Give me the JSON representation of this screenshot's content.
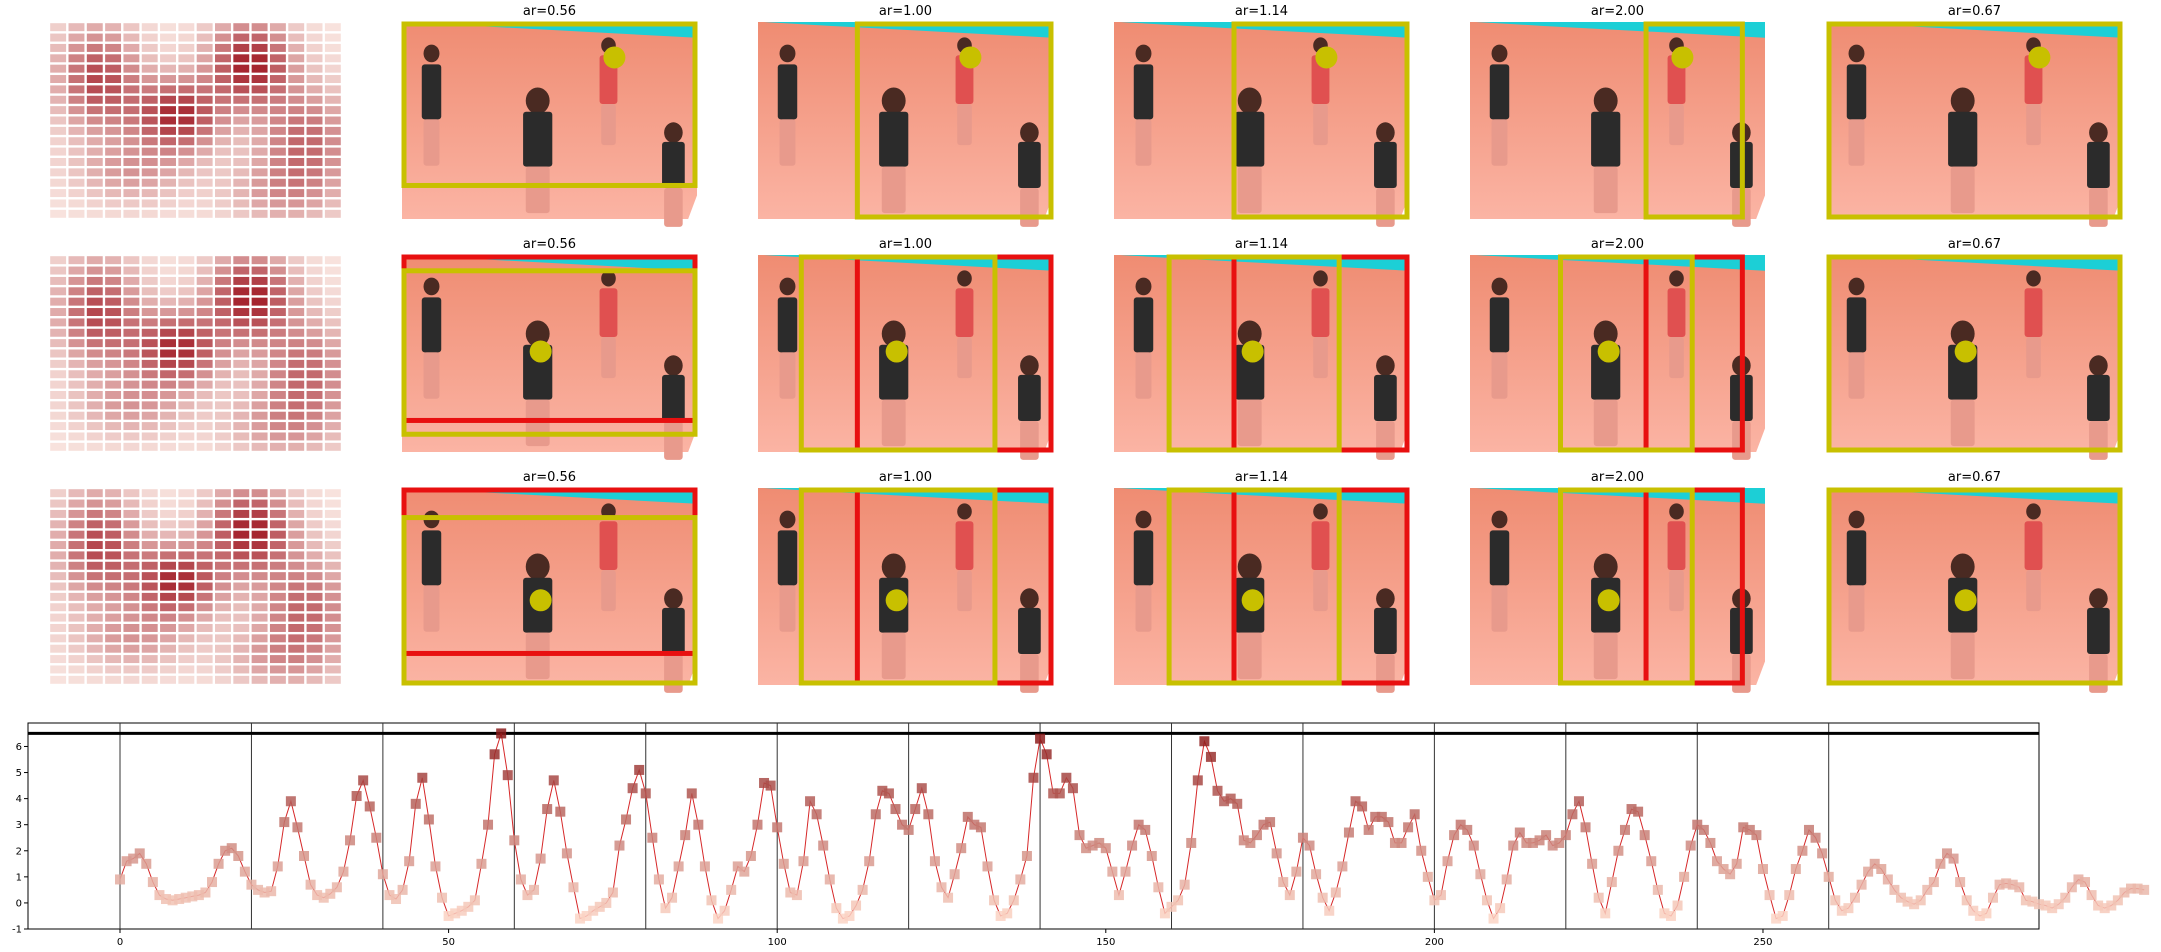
{
  "panel_titles": [
    "ar=0.56",
    "ar=1.00",
    "ar=1.14",
    "ar=2.00",
    "ar=0.67"
  ],
  "colors": {
    "series_line": "#d62728",
    "marker_low": "#fcd5c5",
    "marker_high": "#8b1a1a",
    "crop_box": "#c8c000",
    "ref_box": "#e81010",
    "court": "#f7a08a",
    "court_far": "#ef8c72",
    "stripe": "#1ccfd6"
  },
  "chart_data": {
    "type": "line",
    "title": "",
    "xlabel": "",
    "ylabel": "",
    "xlim": [
      -14,
      292
    ],
    "ylim": [
      -1,
      6.9
    ],
    "xticks": [
      0,
      50,
      100,
      150,
      200,
      250
    ],
    "yticks": [
      -1,
      0,
      1,
      2,
      3,
      4,
      5,
      6
    ],
    "hline": 6.5,
    "vlines": [
      0,
      20,
      40,
      60,
      80,
      100,
      120,
      140,
      160,
      180,
      200,
      220,
      240,
      260
    ],
    "grid": false,
    "legend": "none",
    "series": [
      {
        "values": [
          0.9,
          1.6,
          1.7,
          1.9,
          1.5,
          0.8,
          0.3,
          0.15,
          0.1,
          0.15,
          0.2,
          0.25,
          0.3,
          0.4,
          0.8,
          1.5,
          2.0,
          2.1,
          1.8,
          1.2,
          0.7,
          0.5,
          0.4,
          0.45,
          1.4,
          3.1,
          3.9,
          2.9,
          1.8,
          0.7,
          0.3,
          0.2,
          0.35,
          0.6,
          1.2,
          2.4,
          4.1,
          4.7,
          3.7,
          2.5,
          1.1,
          0.3,
          0.15,
          0.5,
          1.6,
          3.8,
          4.8,
          3.2,
          1.4,
          0.2,
          -0.5,
          -0.4,
          -0.3,
          -0.15,
          0.1,
          1.5,
          3.0,
          5.7,
          6.5,
          4.9,
          2.4,
          0.9,
          0.3,
          0.5,
          1.7,
          3.6,
          4.7,
          3.5,
          1.9,
          0.6,
          -0.6,
          -0.5,
          -0.3,
          -0.15,
          0,
          0.4,
          2.2,
          3.2,
          4.4,
          5.1,
          4.2,
          2.5,
          0.9,
          -0.2,
          0.2,
          1.4,
          2.6,
          4.2,
          3.0,
          1.4,
          0.1,
          -0.6,
          -0.3,
          0.5,
          1.4,
          1.2,
          1.8,
          3.0,
          4.6,
          4.5,
          2.9,
          1.5,
          0.4,
          0.3,
          1.6,
          3.9,
          3.4,
          2.2,
          0.9,
          -0.2,
          -0.6,
          -0.5,
          -0.1,
          0.5,
          1.6,
          3.4,
          4.3,
          4.2,
          3.6,
          3.0,
          2.8,
          3.6,
          4.4,
          3.4,
          1.6,
          0.6,
          0.2,
          1.1,
          2.1,
          3.3,
          3.0,
          2.9,
          1.4,
          0.1,
          -0.5,
          -0.4,
          0.1,
          0.9,
          1.8,
          4.8,
          6.3,
          5.7,
          4.2,
          4.2,
          4.8,
          4.4,
          2.6,
          2.1,
          2.2,
          2.3,
          2.1,
          1.2,
          0.3,
          1.2,
          2.2,
          3.0,
          2.8,
          1.8,
          0.6,
          -0.4,
          -0.15,
          0.1,
          0.7,
          2.3,
          4.7,
          6.2,
          5.6,
          4.3,
          3.9,
          4.0,
          3.8,
          2.4,
          2.3,
          2.6,
          3.0,
          3.1,
          1.9,
          0.8,
          0.3,
          1.2,
          2.5,
          2.2,
          1.1,
          0.2,
          -0.3,
          0.4,
          1.4,
          2.7,
          3.9,
          3.7,
          2.8,
          3.3,
          3.3,
          3.1,
          2.3,
          2.3,
          2.9,
          3.4,
          2.0,
          1.0,
          0.1,
          0.3,
          1.6,
          2.6,
          3.0,
          2.8,
          2.2,
          1.1,
          0.1,
          -0.6,
          -0.2,
          0.9,
          2.2,
          2.7,
          2.3,
          2.3,
          2.4,
          2.6,
          2.2,
          2.3,
          2.6,
          3.4,
          3.9,
          2.9,
          1.5,
          0.2,
          -0.4,
          0.8,
          2.0,
          2.8,
          3.6,
          3.5,
          2.6,
          1.6,
          0.5,
          -0.4,
          -0.5,
          -0.1,
          1.0,
          2.2,
          3.0,
          2.8,
          2.3,
          1.6,
          1.3,
          1.1,
          1.5,
          2.9,
          2.8,
          2.6,
          1.3,
          0.3,
          -0.6,
          -0.5,
          0.3,
          1.3,
          2.0,
          2.8,
          2.5,
          1.9,
          1.0,
          0.1,
          -0.3,
          -0.2,
          0.2,
          0.7,
          1.2,
          1.5,
          1.3,
          0.9,
          0.5,
          0.2,
          0.05,
          -0.05,
          0.1,
          0.5,
          0.8,
          1.5,
          1.9,
          1.7,
          0.8,
          0.1,
          -0.3,
          -0.5,
          -0.4,
          0.2,
          0.7,
          0.75,
          0.7,
          0.6,
          0.1,
          0.05,
          -0.05,
          -0.1,
          -0.2,
          -0.05,
          0.2,
          0.6,
          0.9,
          0.8,
          0.3,
          -0.1,
          -0.2,
          -0.1,
          0.1,
          0.4,
          0.55,
          0.55,
          0.5
        ]
      }
    ]
  }
}
